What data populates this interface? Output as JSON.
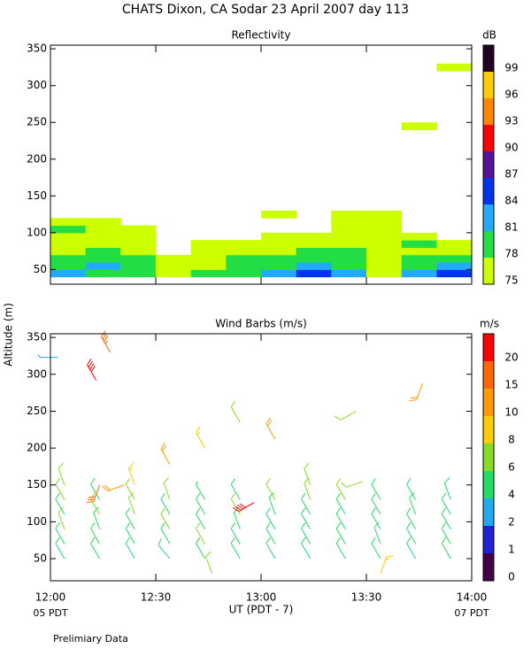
{
  "title": "CHATS Dixon, CA  Sodar  23 April 2007  day 113",
  "ylabel": "Altitude (m)",
  "xlabel": "UT  (PDT - 7)",
  "x_start_label": "05 PDT",
  "x_end_label": "07 PDT",
  "footnote": "Prelimiary Data",
  "chart_data": [
    {
      "type": "heatmap",
      "title": "Reflectivity",
      "xlim": [
        "12:00",
        "14:00"
      ],
      "xticks": [
        "12:00",
        "12:30",
        "13:00",
        "13:30",
        "14:00"
      ],
      "show_xtick_labels": false,
      "ylim": [
        30,
        355
      ],
      "yticks": [
        50,
        100,
        150,
        200,
        250,
        300,
        350
      ],
      "x": [
        "12:00",
        "12:10",
        "12:20",
        "12:30",
        "12:40",
        "12:50",
        "13:00",
        "13:10",
        "13:20",
        "13:30",
        "13:40",
        "13:50"
      ],
      "y": [
        40,
        50,
        60,
        70,
        80,
        90,
        100,
        110,
        120,
        240,
        320
      ],
      "values": [
        [
          82,
          79,
          79,
          76,
          79,
          79,
          82,
          85,
          82,
          76,
          82,
          85
        ],
        [
          79,
          82,
          79,
          76,
          76,
          79,
          79,
          82,
          79,
          76,
          79,
          82
        ],
        [
          79,
          79,
          79,
          76,
          76,
          79,
          79,
          79,
          79,
          76,
          79,
          79
        ],
        [
          76,
          79,
          76,
          null,
          76,
          76,
          76,
          79,
          79,
          76,
          76,
          76
        ],
        [
          76,
          76,
          76,
          null,
          76,
          76,
          76,
          76,
          76,
          76,
          79,
          76
        ],
        [
          76,
          76,
          76,
          null,
          null,
          null,
          76,
          76,
          76,
          76,
          76,
          null
        ],
        [
          79,
          76,
          76,
          null,
          null,
          null,
          null,
          null,
          76,
          76,
          null,
          null
        ],
        [
          76,
          76,
          null,
          null,
          null,
          null,
          null,
          null,
          76,
          76,
          null,
          null
        ],
        [
          null,
          null,
          null,
          null,
          null,
          null,
          76,
          null,
          76,
          76,
          null,
          null
        ],
        [
          null,
          null,
          null,
          null,
          null,
          null,
          null,
          null,
          null,
          null,
          76,
          null
        ],
        [
          null,
          null,
          null,
          null,
          null,
          null,
          null,
          null,
          null,
          null,
          null,
          76
        ]
      ],
      "colorbar": {
        "label": "dB",
        "bounds": [
          75,
          78,
          81,
          84,
          87,
          90,
          93,
          96,
          99
        ],
        "colors": [
          "#ccff00",
          "#22dd44",
          "#22aaff",
          "#0033ee",
          "#551199",
          "#ff0000",
          "#ff8800",
          "#ffcc00",
          "#220022"
        ]
      }
    },
    {
      "type": "barbs",
      "title": "Wind Barbs (m/s)",
      "xlim": [
        "12:00",
        "14:00"
      ],
      "xticks": [
        "12:00",
        "12:30",
        "13:00",
        "13:30",
        "14:00"
      ],
      "show_xtick_labels": true,
      "ylim": [
        20,
        355
      ],
      "yticks": [
        50,
        100,
        150,
        200,
        250,
        300,
        350
      ],
      "x": [
        "12:04",
        "12:04",
        "12:04",
        "12:04",
        "12:04",
        "12:14",
        "12:14",
        "12:14",
        "12:14",
        "12:14",
        "12:24",
        "12:24",
        "12:24",
        "12:24",
        "12:24",
        "12:34",
        "12:34",
        "12:34",
        "12:34",
        "12:34",
        "12:44",
        "12:44",
        "12:44",
        "12:44",
        "12:44",
        "12:54",
        "12:54",
        "12:54",
        "12:54",
        "12:54",
        "13:04",
        "13:04",
        "13:04",
        "13:04",
        "13:04",
        "13:14",
        "13:14",
        "13:14",
        "13:14",
        "13:14",
        "13:24",
        "13:24",
        "13:24",
        "13:24",
        "13:24",
        "13:34",
        "13:34",
        "13:34",
        "13:34",
        "13:34",
        "13:44",
        "13:44",
        "13:44",
        "13:44",
        "13:44",
        "13:54",
        "13:54",
        "13:54",
        "13:54",
        "13:54",
        "12:04",
        "12:02",
        "12:13",
        "12:17",
        "12:14",
        "12:21",
        "12:24",
        "12:34",
        "12:44",
        "12:54",
        "13:04",
        "12:58",
        "13:14",
        "13:27",
        "13:29",
        "13:46",
        "12:46",
        "13:34"
      ],
      "y": [
        50,
        70,
        90,
        110,
        130,
        50,
        70,
        90,
        110,
        130,
        50,
        70,
        90,
        110,
        130,
        50,
        70,
        90,
        110,
        130,
        50,
        70,
        90,
        110,
        130,
        50,
        70,
        90,
        110,
        130,
        50,
        70,
        90,
        110,
        130,
        50,
        70,
        90,
        110,
        130,
        50,
        70,
        90,
        110,
        130,
        50,
        70,
        90,
        110,
        130,
        50,
        70,
        90,
        110,
        130,
        50,
        70,
        90,
        110,
        130,
        150,
        323,
        292,
        330,
        150,
        150,
        150,
        178,
        200,
        235,
        212,
        126,
        150,
        250,
        155,
        288,
        30,
        30
      ],
      "speed": [
        5,
        5,
        6,
        5,
        6,
        5,
        5,
        5,
        6,
        5,
        5,
        5,
        5,
        6,
        6,
        5,
        5,
        6,
        5,
        6,
        5,
        6,
        5,
        5,
        4,
        5,
        5,
        5,
        6,
        5,
        5,
        5,
        5,
        5,
        6,
        5,
        5,
        5,
        5,
        6,
        5,
        5,
        5,
        5,
        6,
        5,
        5,
        5,
        5,
        5,
        5,
        5,
        5,
        5,
        5,
        5,
        5,
        5,
        5,
        5,
        6,
        3,
        20,
        19,
        16,
        12,
        9,
        10,
        9,
        7,
        11,
        21,
        7,
        7,
        7,
        11,
        6,
        9
      ],
      "direction": [
        330,
        330,
        340,
        330,
        330,
        330,
        330,
        340,
        330,
        330,
        330,
        330,
        330,
        340,
        330,
        320,
        330,
        330,
        330,
        340,
        330,
        330,
        330,
        330,
        330,
        330,
        330,
        340,
        330,
        330,
        330,
        330,
        330,
        340,
        330,
        330,
        330,
        330,
        330,
        340,
        330,
        330,
        330,
        330,
        330,
        330,
        340,
        330,
        330,
        330,
        330,
        330,
        330,
        340,
        330,
        330,
        330,
        330,
        330,
        340,
        340,
        270,
        330,
        330,
        200,
        250,
        340,
        330,
        330,
        330,
        330,
        240,
        340,
        240,
        250,
        200,
        340,
        20
      ],
      "colorbar": {
        "label": "m/s",
        "bounds": [
          0,
          1,
          2,
          4,
          6,
          8,
          10,
          15,
          20
        ],
        "colors": [
          "#440044",
          "#2222dd",
          "#22aaee",
          "#22dd66",
          "#88dd22",
          "#ffcc00",
          "#ff9900",
          "#ff6600",
          "#ff0000"
        ]
      }
    }
  ]
}
